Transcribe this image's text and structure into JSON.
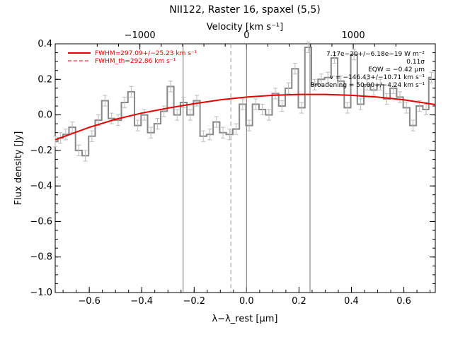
{
  "chart_data": {
    "type": "line",
    "title": "NII122, Raster 16, spaxel (5,5)",
    "xlabel": "λ−λ_rest [μm]",
    "ylabel": "Flux density [Jy]",
    "top_axis_label": "Velocity [km s⁻¹]",
    "xlim": [
      -0.73,
      0.72
    ],
    "ylim": [
      -1.0,
      0.4
    ],
    "x_ticks": [
      -0.6,
      -0.4,
      -0.2,
      0.0,
      0.2,
      0.4,
      0.6
    ],
    "x_tick_labels": [
      "−0.6",
      "−0.4",
      "−0.2",
      "0.0",
      "0.2",
      "0.4",
      "0.6"
    ],
    "y_ticks": [
      -1.0,
      -0.8,
      -0.6,
      -0.4,
      -0.2,
      0.0,
      0.2,
      0.4
    ],
    "y_tick_labels": [
      "−1.0",
      "−0.8",
      "−0.6",
      "−0.4",
      "−0.2",
      "0.0",
      "0.2",
      "0.4"
    ],
    "top_ticks_um": [
      -0.407,
      0.0,
      0.407
    ],
    "top_tick_labels": [
      "−1000",
      "0",
      "1000"
    ],
    "vertical_lines_solid": [
      -0.242,
      0.0,
      0.242
    ],
    "vertical_lines_dashed": [
      -0.06
    ],
    "legend": [
      {
        "label": "FWHM=297.09+/−25.23 km s⁻¹",
        "style": "solid",
        "color": "#e60000"
      },
      {
        "label": "FWHM_th=292.86 km s⁻¹",
        "style": "dashed",
        "color": "#e60000"
      }
    ],
    "annotations": [
      "7.17e−20+/−6.18e−19 W m⁻²",
      "0.11σ",
      "EQW = −0.42 μm",
      "v = −146.43+/−10.71 km s⁻¹",
      "Broadening = 50.00+/−4.24 km s⁻¹"
    ],
    "series": [
      {
        "kind": "step",
        "color": "#888888",
        "x": [
          -0.73,
          -0.71,
          -0.69,
          -0.665,
          -0.64,
          -0.615,
          -0.59,
          -0.565,
          -0.54,
          -0.515,
          -0.49,
          -0.465,
          -0.44,
          -0.415,
          -0.39,
          -0.365,
          -0.34,
          -0.315,
          -0.29,
          -0.265,
          -0.24,
          -0.215,
          -0.19,
          -0.165,
          -0.14,
          -0.115,
          -0.09,
          -0.065,
          -0.04,
          -0.015,
          0.01,
          0.035,
          0.06,
          0.085,
          0.11,
          0.135,
          0.16,
          0.185,
          0.21,
          0.235,
          0.26,
          0.285,
          0.31,
          0.335,
          0.36,
          0.385,
          0.41,
          0.435,
          0.46,
          0.485,
          0.51,
          0.535,
          0.56,
          0.585,
          0.61,
          0.635,
          0.66,
          0.685,
          0.705
        ],
        "values": [
          -0.15,
          -0.13,
          -0.11,
          -0.07,
          -0.2,
          -0.23,
          -0.12,
          -0.03,
          0.08,
          -0.02,
          -0.03,
          0.07,
          0.13,
          -0.06,
          0.0,
          -0.1,
          -0.05,
          0.02,
          0.16,
          0.0,
          0.07,
          0.0,
          0.08,
          -0.12,
          -0.11,
          -0.04,
          -0.1,
          -0.11,
          -0.08,
          0.06,
          -0.06,
          0.06,
          0.03,
          0.0,
          0.12,
          0.05,
          0.15,
          0.26,
          0.04,
          0.38,
          0.17,
          0.2,
          0.21,
          0.32,
          0.19,
          0.04,
          0.34,
          0.06,
          0.17,
          0.14,
          0.17,
          0.09,
          0.15,
          0.1,
          0.04,
          -0.06,
          0.05,
          0.03,
          0.21
        ],
        "errors": [
          0.03,
          0.03,
          0.03,
          0.03,
          0.03,
          0.03,
          0.03,
          0.03,
          0.03,
          0.03,
          0.03,
          0.03,
          0.03,
          0.03,
          0.03,
          0.03,
          0.03,
          0.03,
          0.03,
          0.03,
          0.03,
          0.03,
          0.03,
          0.03,
          0.03,
          0.03,
          0.03,
          0.03,
          0.03,
          0.03,
          0.03,
          0.03,
          0.03,
          0.03,
          0.03,
          0.03,
          0.03,
          0.03,
          0.03,
          0.03,
          0.03,
          0.03,
          0.03,
          0.03,
          0.03,
          0.03,
          0.03,
          0.03,
          0.03,
          0.03,
          0.03,
          0.03,
          0.03,
          0.03,
          0.03,
          0.03,
          0.03,
          0.03,
          0.03
        ]
      },
      {
        "kind": "fit",
        "color": "#e60000",
        "x": [
          -0.73,
          -0.6,
          -0.5,
          -0.4,
          -0.3,
          -0.2,
          -0.1,
          0.0,
          0.1,
          0.2,
          0.3,
          0.4,
          0.5,
          0.6,
          0.72
        ],
        "values": [
          -0.14,
          -0.07,
          -0.025,
          0.01,
          0.038,
          0.063,
          0.085,
          0.1,
          0.11,
          0.115,
          0.115,
          0.11,
          0.1,
          0.085,
          0.058
        ]
      }
    ]
  }
}
